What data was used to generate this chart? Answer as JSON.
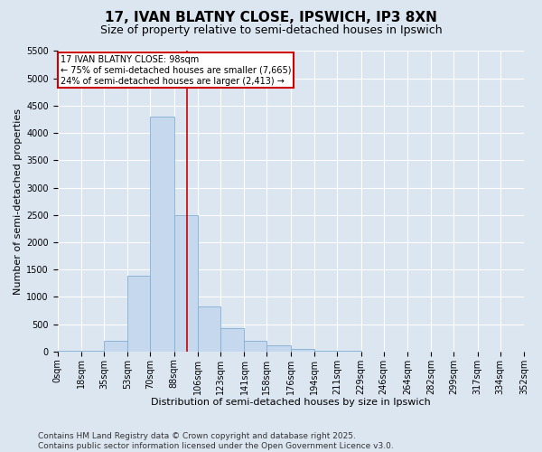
{
  "title": "17, IVAN BLATNY CLOSE, IPSWICH, IP3 8XN",
  "subtitle": "Size of property relative to semi-detached houses in Ipswich",
  "xlabel": "Distribution of semi-detached houses by size in Ipswich",
  "ylabel": "Number of semi-detached properties",
  "bar_color": "#c5d8ee",
  "bar_edge_color": "#7fafd4",
  "annotation_line_color": "#cc0000",
  "annotation_box_color": "#cc0000",
  "annotation_text": "17 IVAN BLATNY CLOSE: 98sqm\n← 75% of semi-detached houses are smaller (7,665)\n24% of semi-detached houses are larger (2,413) →",
  "property_size": 98,
  "bins": [
    0,
    18,
    35,
    53,
    70,
    88,
    106,
    123,
    141,
    158,
    176,
    194,
    211,
    229,
    246,
    264,
    282,
    299,
    317,
    334,
    352
  ],
  "bin_labels": [
    "0sqm",
    "18sqm",
    "35sqm",
    "53sqm",
    "70sqm",
    "88sqm",
    "106sqm",
    "123sqm",
    "141sqm",
    "158sqm",
    "176sqm",
    "194sqm",
    "211sqm",
    "229sqm",
    "246sqm",
    "264sqm",
    "282sqm",
    "299sqm",
    "317sqm",
    "334sqm",
    "352sqm"
  ],
  "counts": [
    10,
    20,
    200,
    1380,
    4300,
    2500,
    820,
    430,
    200,
    120,
    50,
    20,
    10,
    5,
    2,
    1,
    0,
    0,
    0,
    0
  ],
  "ylim": [
    0,
    5500
  ],
  "yticks": [
    0,
    500,
    1000,
    1500,
    2000,
    2500,
    3000,
    3500,
    4000,
    4500,
    5000,
    5500
  ],
  "background_color": "#dce6f1",
  "plot_bg_color": "#dce6f1",
  "footer": "Contains HM Land Registry data © Crown copyright and database right 2025.\nContains public sector information licensed under the Open Government Licence v3.0.",
  "title_fontsize": 11,
  "subtitle_fontsize": 9,
  "label_fontsize": 8,
  "tick_fontsize": 7,
  "footer_fontsize": 6.5
}
